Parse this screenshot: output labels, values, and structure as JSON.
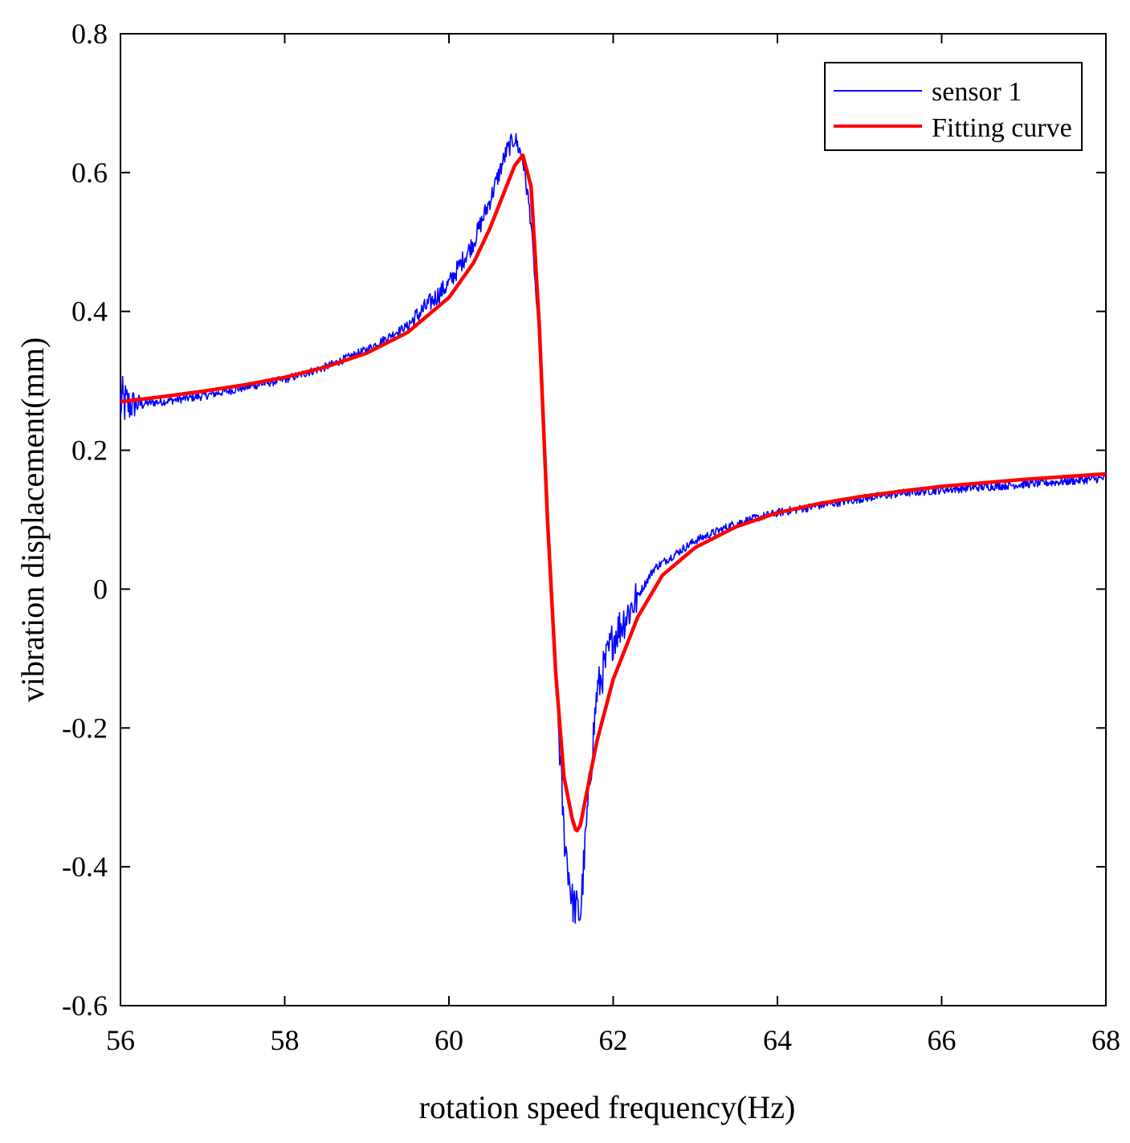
{
  "chart_data": {
    "type": "line",
    "title": "",
    "xlabel": "rotation speed frequency(Hz)",
    "ylabel": "vibration displacement(mm)",
    "xlim": [
      56,
      68
    ],
    "ylim": [
      -0.6,
      0.8
    ],
    "xticks": [
      56,
      58,
      60,
      62,
      64,
      66,
      68
    ],
    "yticks": [
      -0.6,
      -0.4,
      -0.2,
      0,
      0.2,
      0.4,
      0.6,
      0.8
    ],
    "xtick_labels": [
      "56",
      "58",
      "60",
      "62",
      "64",
      "66",
      "68"
    ],
    "ytick_labels": [
      "-0.6",
      "-0.4",
      "-0.2",
      "0",
      "0.2",
      "0.4",
      "0.6",
      "0.8"
    ],
    "grid": false,
    "legend_position": "top-right",
    "series": [
      {
        "name": "sensor 1",
        "color": "#0000ff",
        "style": "noisy-thin",
        "x": [
          56.0,
          56.1,
          56.5,
          57.0,
          57.5,
          58.0,
          58.5,
          59.0,
          59.5,
          60.0,
          60.3,
          60.5,
          60.7,
          60.8,
          60.9,
          61.0,
          61.1,
          61.2,
          61.3,
          61.4,
          61.5,
          61.6,
          61.7,
          61.8,
          62.0,
          62.5,
          63.0,
          63.5,
          64.0,
          64.5,
          65.0,
          65.5,
          66.0,
          66.5,
          67.0,
          67.5,
          68.0
        ],
        "y": [
          0.27,
          0.265,
          0.27,
          0.278,
          0.29,
          0.302,
          0.32,
          0.345,
          0.38,
          0.44,
          0.5,
          0.56,
          0.63,
          0.65,
          0.62,
          0.53,
          0.35,
          0.1,
          -0.12,
          -0.35,
          -0.45,
          -0.47,
          -0.3,
          -0.15,
          -0.07,
          0.03,
          0.07,
          0.095,
          0.11,
          0.12,
          0.13,
          0.138,
          0.143,
          0.147,
          0.151,
          0.155,
          0.16
        ]
      },
      {
        "name": "Fitting curve",
        "color": "#ff0000",
        "style": "thick-smooth",
        "x": [
          56.0,
          56.5,
          57.0,
          57.5,
          58.0,
          58.5,
          59.0,
          59.5,
          60.0,
          60.3,
          60.5,
          60.7,
          60.8,
          60.9,
          61.0,
          61.1,
          61.2,
          61.3,
          61.4,
          61.5,
          61.55,
          61.6,
          61.7,
          61.8,
          62.0,
          62.3,
          62.6,
          63.0,
          63.5,
          64.0,
          64.5,
          65.0,
          65.5,
          66.0,
          66.5,
          67.0,
          67.5,
          68.0
        ],
        "y": [
          0.27,
          0.277,
          0.285,
          0.294,
          0.305,
          0.32,
          0.34,
          0.37,
          0.42,
          0.47,
          0.52,
          0.58,
          0.61,
          0.625,
          0.58,
          0.38,
          0.1,
          -0.12,
          -0.27,
          -0.33,
          -0.35,
          -0.34,
          -0.28,
          -0.22,
          -0.13,
          -0.04,
          0.02,
          0.06,
          0.09,
          0.11,
          0.123,
          0.133,
          0.141,
          0.148,
          0.153,
          0.158,
          0.162,
          0.166
        ]
      }
    ]
  }
}
